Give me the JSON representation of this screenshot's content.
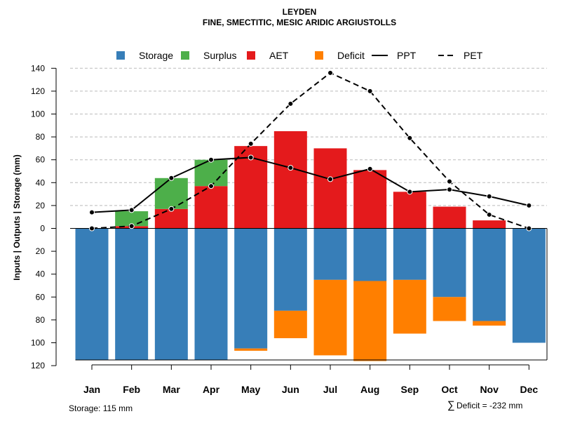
{
  "chart_data": {
    "type": "bar",
    "title": "LEYDEN",
    "subtitle": "FINE, SMECTITIC, MESIC ARIDIC ARGIUSTOLLS",
    "ylabel": "Inputs | Outputs | Storage    (mm)",
    "ylim": [
      -120,
      140
    ],
    "y_ticks": [
      140,
      120,
      100,
      80,
      60,
      40,
      20,
      0,
      -20,
      -40,
      -60,
      -80,
      -100,
      -120
    ],
    "y_tick_labels": [
      "140",
      "120",
      "100",
      "80",
      "60",
      "40",
      "20",
      "0",
      "20",
      "40",
      "60",
      "80",
      "100",
      "120"
    ],
    "categories": [
      "Jan",
      "Feb",
      "Mar",
      "Apr",
      "May",
      "Jun",
      "Jul",
      "Aug",
      "Sep",
      "Oct",
      "Nov",
      "Dec"
    ],
    "legend": [
      {
        "label": "Storage",
        "kind": "box",
        "color": "#377EB8"
      },
      {
        "label": "Surplus",
        "kind": "box",
        "color": "#4DAF4A"
      },
      {
        "label": "AET",
        "kind": "box",
        "color": "#E41A1C"
      },
      {
        "label": "Deficit",
        "kind": "box",
        "color": "#FF7F00"
      },
      {
        "label": "PPT",
        "kind": "solid",
        "color": "#000000"
      },
      {
        "label": "PET",
        "kind": "dashed",
        "color": "#000000"
      }
    ],
    "colors": {
      "storage": "#377EB8",
      "surplus": "#4DAF4A",
      "aet": "#E41A1C",
      "deficit": "#FF7F00",
      "line": "#000000",
      "grid": "#BBBBBB"
    },
    "series": [
      {
        "name": "Storage",
        "values": [
          115,
          115,
          115,
          115,
          105,
          72,
          45,
          46,
          45,
          60,
          81,
          100
        ]
      },
      {
        "name": "Deficit",
        "values": [
          0,
          0,
          0,
          0,
          2,
          24,
          66,
          70,
          47,
          21,
          4,
          0
        ]
      },
      {
        "name": "AET",
        "values": [
          0,
          2,
          17,
          37,
          72,
          85,
          70,
          51,
          32,
          19,
          7,
          0
        ]
      },
      {
        "name": "Surplus",
        "values": [
          0,
          13,
          27,
          23,
          0,
          0,
          0,
          0,
          0,
          0,
          0,
          0
        ]
      },
      {
        "name": "PPT",
        "values": [
          14,
          16,
          44,
          60,
          62,
          53,
          43,
          52,
          32,
          34,
          28,
          20
        ]
      },
      {
        "name": "PET",
        "values": [
          0,
          2,
          17,
          37,
          74,
          109,
          136,
          120,
          79,
          41,
          12,
          0
        ]
      }
    ],
    "storage_capacity": 115,
    "footer_left": "Storage: 115 mm",
    "footer_right_symbol": "∑",
    "footer_right": "Deficit = -232 mm"
  }
}
